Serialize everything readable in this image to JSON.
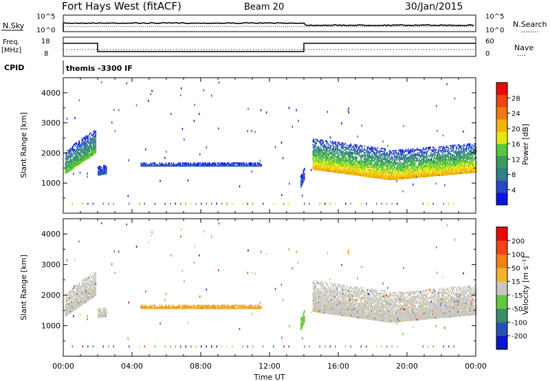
{
  "header": {
    "station": "Fort Hays West (fitACF)",
    "beam": "Beam 20",
    "date": "30/Jan/2015"
  },
  "noise_panel": {
    "left_label": "N.Sky",
    "right_label": "N.Search",
    "right_legend": "........",
    "left_ticks": [
      "10^5",
      "10^0"
    ],
    "right_ticks": [
      "10^5",
      "10^0"
    ]
  },
  "freq_panel": {
    "left_label_1": "Freq.",
    "left_label_2": "[MHz]",
    "right_label": "Nave",
    "right_legend": "....",
    "left_ticks": [
      "18",
      "8"
    ],
    "right_ticks": [
      "60",
      "0"
    ]
  },
  "cpid_panel": {
    "label": "CPID",
    "text": "themis -3300 IF"
  },
  "power_panel": {
    "ylabel": "Slant Range [km]",
    "yticks": [
      "4000",
      "3000",
      "2000",
      "1000"
    ],
    "colorbar_label": "Power [dB]",
    "colorbar_ticks": [
      "28",
      "24",
      "20",
      "16",
      "12",
      "8",
      "4"
    ],
    "colors": [
      "#0a14e6",
      "#2846c8",
      "#30808a",
      "#3c9a5a",
      "#56c83a",
      "#e6e614",
      "#f0b40a",
      "#f07814",
      "#f04614",
      "#e60a0a"
    ]
  },
  "velocity_panel": {
    "ylabel": "Slant Range [km]",
    "yticks": [
      "4000",
      "3000",
      "2000",
      "1000"
    ],
    "colorbar_label": "Velocity [m s⁻¹]",
    "colorbar_ticks": [
      "200",
      "100",
      "50",
      "15",
      "-15",
      "-50",
      "-100",
      "-200"
    ],
    "colors": [
      "#0a14c8",
      "#2850b4",
      "#3c8c64",
      "#64c83c",
      "#c8c8c0",
      "#f0b428",
      "#f08214",
      "#f04614",
      "#e60a0a"
    ]
  },
  "xaxis": {
    "ticks": [
      "00:00",
      "04:00",
      "08:00",
      "12:00",
      "16:00",
      "20:00",
      "00:00"
    ],
    "label": "Time UT"
  },
  "chart_data": {
    "type": "heatmap",
    "title": "Fort Hays West (fitACF) Beam 20 30/Jan/2015",
    "xlabel": "Time UT",
    "ylabel": "Slant Range [km]",
    "xlim_hours": [
      0,
      24
    ],
    "ylim_km": [
      0,
      4500
    ],
    "frequency_mhz": [
      {
        "from_hour": 0.0,
        "to_hour": 2.0,
        "value": 15.5
      },
      {
        "from_hour": 2.0,
        "to_hour": 14.0,
        "value": 10.5
      },
      {
        "from_hour": 14.0,
        "to_hour": 24.0,
        "value": 15.5
      }
    ],
    "power_scatter_bands": [
      {
        "t0": 0.1,
        "t1": 1.9,
        "r0_start": 1300,
        "r0_end": 2000,
        "width": 800,
        "power": 14
      },
      {
        "t0": 2.0,
        "t1": 2.5,
        "r0_start": 1250,
        "r0_end": 1300,
        "width": 300,
        "power": 6
      },
      {
        "t0": 4.5,
        "t1": 11.5,
        "r0_start": 1550,
        "r0_end": 1550,
        "width": 100,
        "power": 6
      },
      {
        "t0": 13.8,
        "t1": 14.0,
        "r0_start": 850,
        "r0_end": 1100,
        "width": 400,
        "power": 6
      },
      {
        "t0": 14.5,
        "t1": 19.0,
        "r0_start": 1450,
        "r0_end": 1100,
        "width": 1000,
        "power": 20
      },
      {
        "t0": 19.0,
        "t1": 24.0,
        "r0_start": 1100,
        "r0_end": 1350,
        "width": 950,
        "power": 20
      }
    ],
    "power_range_db": [
      0,
      30
    ],
    "velocity_range_ms": [
      -250,
      250
    ]
  }
}
